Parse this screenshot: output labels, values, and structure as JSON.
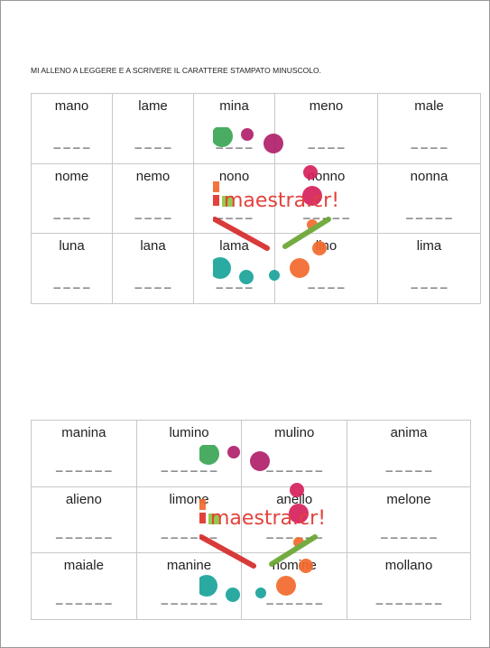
{
  "header": {
    "instruction": "MI ALLENO A LEGGERE E A SCRIVERE IL CARATTERE STAMPATO MINUSCOLO."
  },
  "watermark": {
    "text": "maestra.cr!"
  },
  "tables": [
    {
      "rows": [
        [
          {
            "word": "mano",
            "blank": "_ _ _ _"
          },
          {
            "word": "lame",
            "blank": "_ _ _ _"
          },
          {
            "word": "mina",
            "blank": "_ _ _ _"
          },
          {
            "word": "meno",
            "blank": "_ _ _ _"
          },
          {
            "word": "male",
            "blank": "_ _ _ _"
          }
        ],
        [
          {
            "word": "nome",
            "blank": "_ _ _ _"
          },
          {
            "word": "nemo",
            "blank": "_ _ _ _"
          },
          {
            "word": "nono",
            "blank": "_ _ _ _"
          },
          {
            "word": "nonno",
            "blank": "_ _ _ _ _"
          },
          {
            "word": "nonna",
            "blank": "_ _ _ _ _"
          }
        ],
        [
          {
            "word": "luna",
            "blank": "_ _ _ _"
          },
          {
            "word": "lana",
            "blank": "_ _ _ _"
          },
          {
            "word": "lama",
            "blank": "_ _ _ _"
          },
          {
            "word": "lino",
            "blank": "_ _ _ _"
          },
          {
            "word": "lima",
            "blank": "_ _ _ _"
          }
        ]
      ]
    },
    {
      "rows": [
        [
          {
            "word": "manina",
            "blank": "_ _ _ _ _ _"
          },
          {
            "word": "lumino",
            "blank": "_ _ _ _ _ _"
          },
          {
            "word": "mulino",
            "blank": "_ _ _ _ _ _"
          },
          {
            "word": "anima",
            "blank": "_ _ _ _ _"
          }
        ],
        [
          {
            "word": "alieno",
            "blank": "_ _ _ _ _ _"
          },
          {
            "word": "limone",
            "blank": "_ _ _ _ _ _"
          },
          {
            "word": "anello",
            "blank": "_ _ _ _ _ _"
          },
          {
            "word": "melone",
            "blank": "_ _ _ _ _ _"
          }
        ],
        [
          {
            "word": "maiale",
            "blank": "_ _ _ _ _ _"
          },
          {
            "word": "manine",
            "blank": "_ _ _ _ _ _"
          },
          {
            "word": "nomine",
            "blank": "_ _ _ _ _ _"
          },
          {
            "word": "mollano",
            "blank": "_ _ _ _ _ _ _"
          }
        ]
      ]
    }
  ]
}
